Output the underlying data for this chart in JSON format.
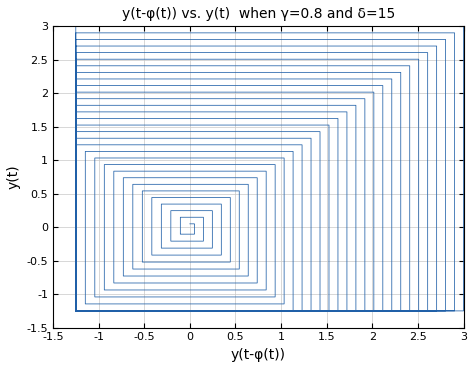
{
  "title": "y(t-φ(t)) vs. y(t)  when γ=0.8 and δ=15",
  "xlabel": "y(t-φ(t))",
  "ylabel": "y(t)",
  "xlim": [
    -1.5,
    3.0
  ],
  "ylim": [
    -1.5,
    3.0
  ],
  "xticks": [
    -1.5,
    -1.0,
    -0.5,
    0.0,
    0.5,
    1.0,
    1.5,
    2.0,
    2.5,
    3.0
  ],
  "yticks": [
    -1.5,
    -1.0,
    -0.5,
    0.0,
    0.5,
    1.0,
    1.5,
    2.0,
    2.5,
    3.0
  ],
  "line_color": "#2060a8",
  "line_width": 0.55,
  "background_color": "#ffffff",
  "grid_color": "#c8c8c8",
  "figsize": [
    4.74,
    3.69
  ],
  "dpi": 100,
  "n_cycles": 30,
  "top_max": 3.0,
  "bottom_min": -1.25
}
